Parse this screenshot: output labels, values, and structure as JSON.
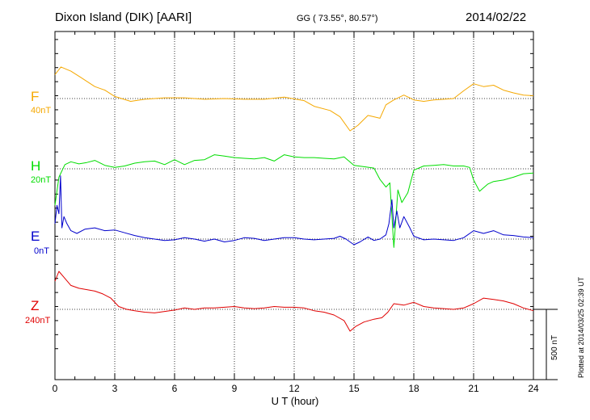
{
  "header": {
    "station": "Dixon Island (DIK)  [AARI]",
    "coords": "GG ( 73.55°,  80.57°)",
    "date": "2014/02/22"
  },
  "footer": {
    "plotted": "Plotted at 2014/03/25 02:39 UT",
    "scale_bar": "500 nT"
  },
  "colors": {
    "F": "#f5a800",
    "H": "#00dd00",
    "E": "#0000cc",
    "Z": "#e00000"
  },
  "chart_data": {
    "type": "line",
    "title": "Dixon Island (DIK)  [AARI]",
    "xlabel": "U T (hour)",
    "ylabel": "",
    "xlim": [
      0,
      24
    ],
    "x_ticks": [
      "0",
      "3",
      "6",
      "9",
      "12",
      "15",
      "18",
      "21",
      "24"
    ],
    "grid": true,
    "scale_nT": 500,
    "series": [
      {
        "name": "F",
        "offset_label": "40nT",
        "color": "#f5a800",
        "baseline_nT": 1480,
        "x": [
          0,
          0.3,
          0.8,
          1.3,
          2,
          2.5,
          3,
          3.8,
          4.5,
          5.5,
          6.5,
          7.5,
          8.5,
          9.5,
          10.5,
          11.5,
          12.5,
          13,
          13.8,
          14.3,
          14.8,
          15.2,
          15.7,
          16.3,
          16.6,
          17,
          17.5,
          18,
          18.5,
          19,
          20,
          20.5,
          21,
          21.5,
          22,
          22.5,
          23,
          23.5,
          24
        ],
        "y": [
          1650,
          1705,
          1675,
          1630,
          1565,
          1540,
          1495,
          1460,
          1475,
          1485,
          1485,
          1475,
          1480,
          1475,
          1475,
          1490,
          1465,
          1425,
          1395,
          1350,
          1250,
          1290,
          1360,
          1340,
          1435,
          1470,
          1505,
          1470,
          1460,
          1470,
          1480,
          1535,
          1585,
          1565,
          1575,
          1540,
          1520,
          1505,
          1500
        ]
      },
      {
        "name": "H",
        "offset_label": "20nT",
        "color": "#00dd00",
        "baseline_nT": 980,
        "x": [
          0,
          0.2,
          0.5,
          0.8,
          1.2,
          1.6,
          2,
          2.5,
          3,
          3.5,
          4,
          4.5,
          5,
          5.5,
          6,
          6.5,
          7,
          7.5,
          8,
          8.5,
          9,
          9.5,
          10,
          10.5,
          11,
          11.5,
          12,
          12.5,
          13,
          13.5,
          14,
          14.5,
          15,
          15.5,
          16,
          16.3,
          16.6,
          16.8,
          17,
          17.2,
          17.4,
          17.7,
          18,
          18.5,
          19,
          19.5,
          20,
          20.5,
          20.8,
          21,
          21.3,
          21.7,
          22,
          22.5,
          23,
          23.5,
          24
        ],
        "y": [
          720,
          920,
          1010,
          1030,
          1015,
          1025,
          1040,
          1005,
          990,
          1000,
          1020,
          1030,
          1035,
          1010,
          1045,
          1010,
          1040,
          1045,
          1080,
          1070,
          1060,
          1055,
          1050,
          1060,
          1035,
          1080,
          1065,
          1060,
          1060,
          1055,
          1050,
          1065,
          1005,
          995,
          985,
          905,
          850,
          880,
          420,
          830,
          740,
          810,
          970,
          1000,
          1005,
          1010,
          1000,
          1000,
          990,
          900,
          820,
          870,
          890,
          900,
          920,
          945,
          950
        ]
      },
      {
        "name": "E",
        "offset_label": "0nT",
        "color": "#0000cc",
        "baseline_nT": 480,
        "x": [
          0,
          0.1,
          0.2,
          0.28,
          0.35,
          0.45,
          0.6,
          0.8,
          1.1,
          1.5,
          2,
          2.5,
          3,
          3.5,
          4,
          4.5,
          5,
          5.5,
          6,
          6.5,
          7,
          7.5,
          8,
          8.5,
          9,
          9.5,
          10,
          10.5,
          11,
          11.5,
          12,
          12.5,
          13,
          13.5,
          14,
          14.3,
          14.6,
          15,
          15.3,
          15.7,
          16,
          16.3,
          16.6,
          16.75,
          16.9,
          17,
          17.15,
          17.3,
          17.5,
          17.8,
          18,
          18.5,
          19,
          19.5,
          20,
          20.5,
          21,
          21.5,
          22,
          22.5,
          23,
          23.5,
          24
        ],
        "y": [
          590,
          720,
          660,
          930,
          560,
          640,
          590,
          540,
          520,
          550,
          560,
          540,
          545,
          525,
          505,
          490,
          480,
          470,
          475,
          490,
          480,
          465,
          480,
          460,
          470,
          490,
          485,
          470,
          480,
          490,
          490,
          480,
          475,
          480,
          485,
          500,
          480,
          440,
          460,
          495,
          470,
          480,
          510,
          590,
          760,
          560,
          680,
          560,
          640,
          560,
          500,
          475,
          480,
          475,
          470,
          490,
          540,
          520,
          540,
          510,
          505,
          495,
          490
        ]
      },
      {
        "name": "Z",
        "offset_label": "240nT",
        "color": "#e00000",
        "baseline_nT": -20,
        "x": [
          0,
          0.2,
          0.5,
          0.8,
          1.2,
          1.6,
          2,
          2.4,
          2.8,
          3.2,
          3.6,
          4,
          4.5,
          5,
          5.5,
          6,
          6.5,
          7,
          7.5,
          8,
          8.5,
          9,
          9.5,
          10,
          10.5,
          11,
          11.5,
          12,
          12.5,
          13,
          13.5,
          14,
          14.5,
          14.8,
          15.1,
          15.5,
          16,
          16.4,
          16.7,
          17,
          17.5,
          18,
          18.5,
          19,
          19.5,
          20,
          20.5,
          21,
          21.5,
          22,
          22.5,
          23,
          23.5,
          24
        ],
        "y": [
          180,
          250,
          200,
          150,
          130,
          120,
          110,
          90,
          60,
          0,
          -20,
          -30,
          -40,
          -45,
          -35,
          -25,
          -10,
          -20,
          -10,
          -10,
          -5,
          0,
          -10,
          -15,
          -10,
          0,
          -5,
          -5,
          -10,
          -30,
          -40,
          -60,
          -100,
          -175,
          -140,
          -110,
          -90,
          -80,
          -40,
          20,
          10,
          30,
          0,
          -10,
          -15,
          -20,
          -10,
          20,
          60,
          50,
          40,
          20,
          -10,
          -30
        ]
      }
    ]
  }
}
